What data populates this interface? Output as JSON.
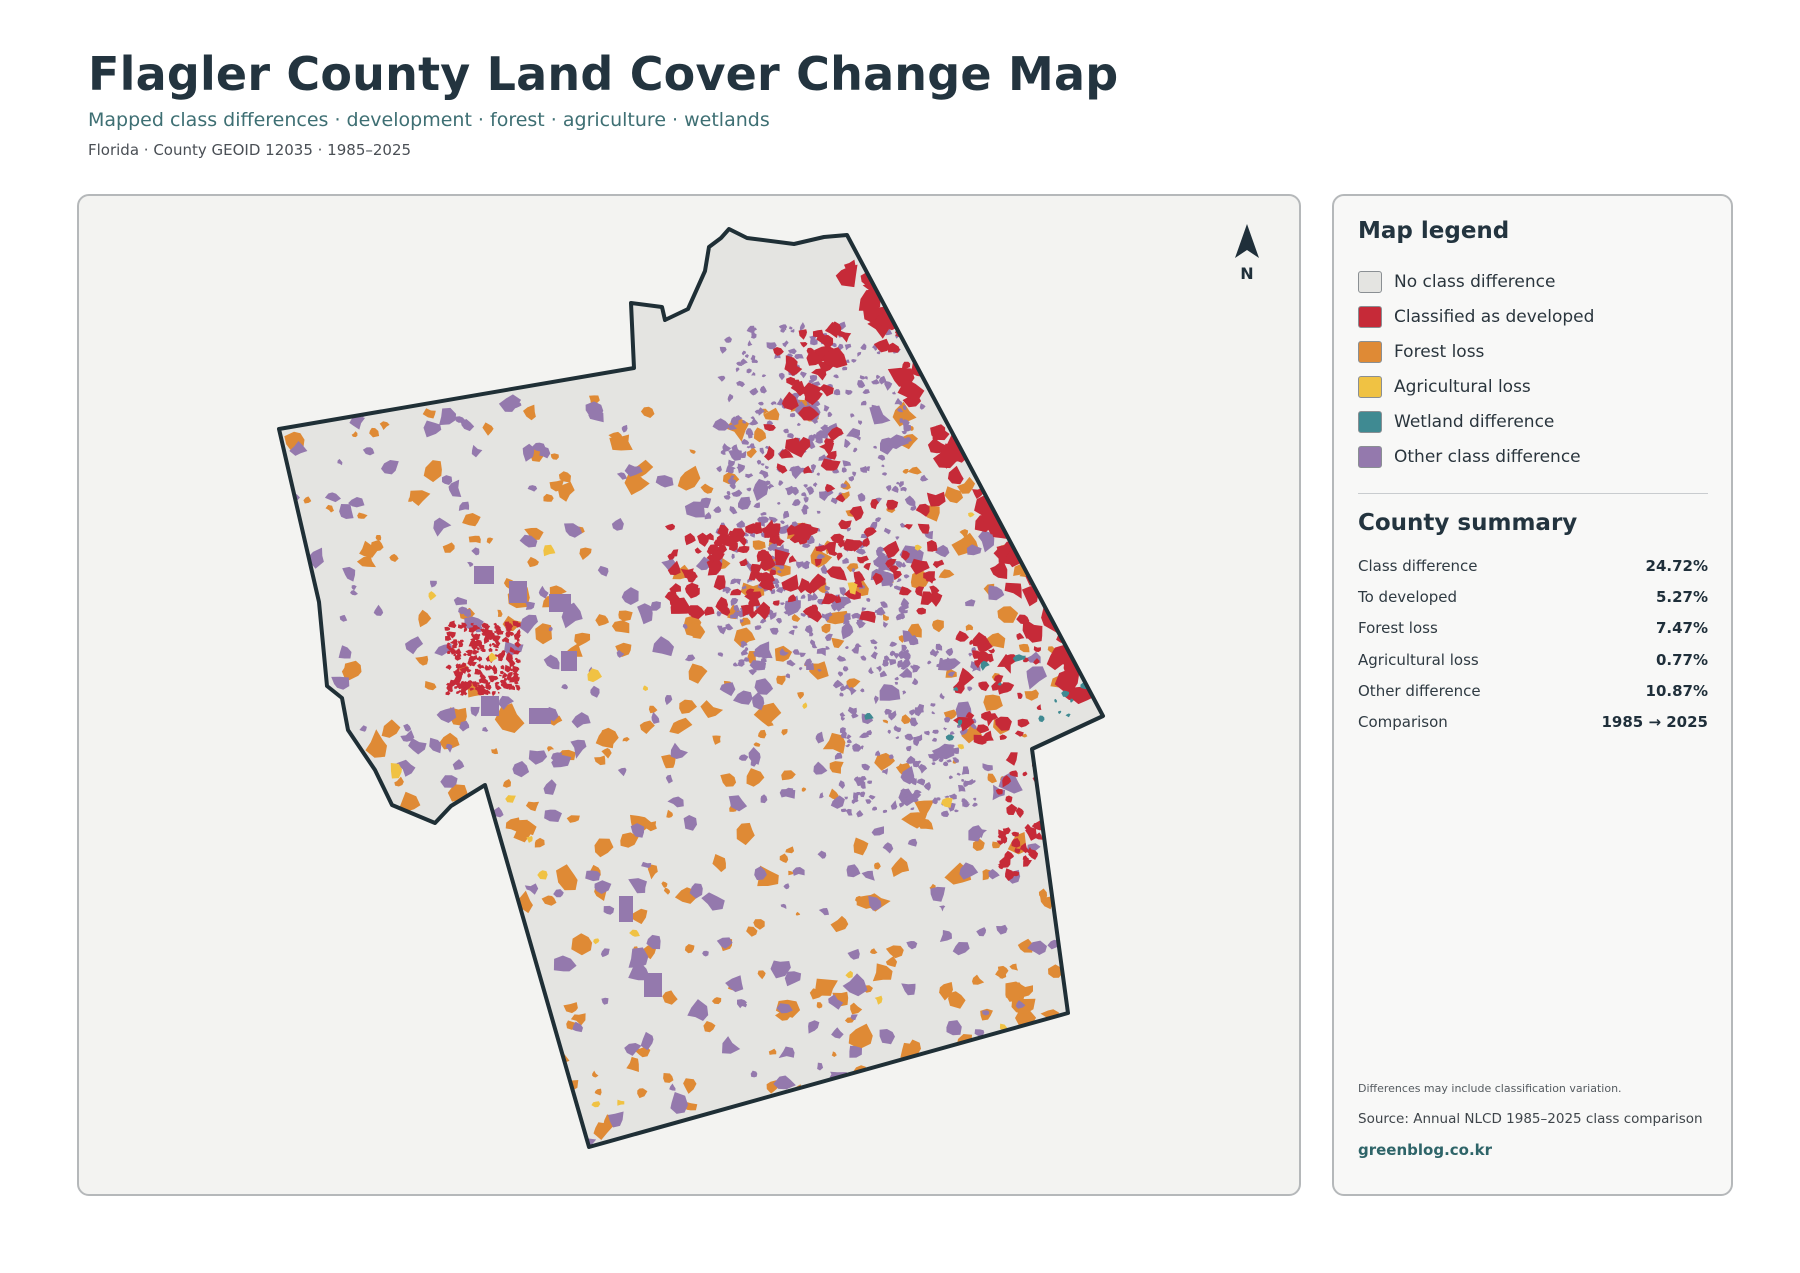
{
  "header": {
    "title": "Flagler County Land Cover Change Map",
    "subtitle": "Mapped class differences · development · forest · agriculture · wetlands",
    "meta": "Florida · County GEOID 12035 · 1985–2025"
  },
  "map": {
    "north_label": "N",
    "colors": {
      "background": "#f3f3f1",
      "no_change": "#e4e4e1",
      "developed": "#c62a38",
      "forest_loss": "#df8a35",
      "agricultural_loss": "#f0c243",
      "wetland": "#3f8a92",
      "other": "#9479ad",
      "boundary": "#1f2f36"
    }
  },
  "legend": {
    "title": "Map legend",
    "items": [
      {
        "label": "No class difference",
        "color": "#e4e4e1"
      },
      {
        "label": "Classified as developed",
        "color": "#c62a38"
      },
      {
        "label": "Forest loss",
        "color": "#df8a35"
      },
      {
        "label": "Agricultural loss",
        "color": "#f0c243"
      },
      {
        "label": "Wetland difference",
        "color": "#3f8a92"
      },
      {
        "label": "Other class difference",
        "color": "#9479ad"
      }
    ]
  },
  "summary": {
    "title": "County summary",
    "rows": [
      {
        "label": "Class difference",
        "value": "24.72%"
      },
      {
        "label": "To developed",
        "value": "5.27%"
      },
      {
        "label": "Forest loss",
        "value": "7.47%"
      },
      {
        "label": "Agricultural loss",
        "value": "0.77%"
      },
      {
        "label": "Other difference",
        "value": "10.87%"
      },
      {
        "label": "Comparison",
        "value": "1985 → 2025"
      }
    ]
  },
  "footer": {
    "note": "Differences may include classification variation.",
    "source": "Source: Annual NLCD 1985–2025 class comparison",
    "site": "greenblog.co.kr"
  }
}
